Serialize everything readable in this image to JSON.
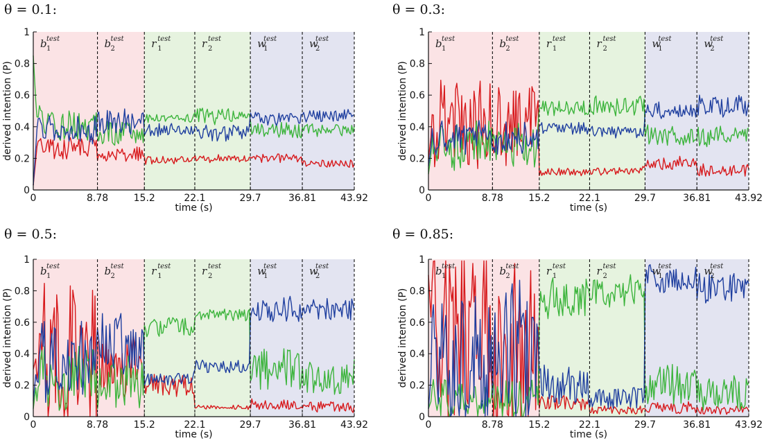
{
  "colors": {
    "red": "#d7191c",
    "green": "#3cb43c",
    "blue": "#1f3f9f",
    "bg_b": "#fbe3e5",
    "bg_r": "#e6f3df",
    "bg_w": "#e3e4f1"
  },
  "segment_labels": [
    {
      "base": "b",
      "sub": "1",
      "sup": "test"
    },
    {
      "base": "b",
      "sub": "2",
      "sup": "test"
    },
    {
      "base": "r",
      "sub": "1",
      "sup": "test"
    },
    {
      "base": "r",
      "sub": "2",
      "sup": "test"
    },
    {
      "base": "w",
      "sub": "1",
      "sup": "test"
    },
    {
      "base": "w",
      "sub": "2",
      "sup": "test"
    }
  ],
  "chart_data": [
    {
      "type": "line",
      "title": "θ = 0.1:",
      "xlabel": "time (s)",
      "ylabel": "derived intention (P)",
      "xlim": [
        0,
        43.92
      ],
      "ylim": [
        0,
        1
      ],
      "xticks": [
        0,
        8.78,
        15.2,
        22.1,
        29.7,
        36.81,
        43.92
      ],
      "xtick_labels": [
        "0",
        "8.78",
        "15.2",
        "22.1",
        "29.7",
        "36.81",
        "43.92"
      ],
      "yticks": [
        0,
        0.2,
        0.4,
        0.6,
        0.8,
        1
      ],
      "ytick_labels": [
        "0",
        "0.2",
        "0.4",
        "0.6",
        "0.8",
        "1"
      ],
      "segments": [
        0,
        8.78,
        15.2,
        22.1,
        29.7,
        36.81,
        43.92
      ],
      "series": [
        {
          "name": "red",
          "levels": [
            0.27,
            0.22,
            0.19,
            0.2,
            0.2,
            0.17
          ],
          "amp": [
            0.06,
            0.04,
            0.02,
            0.02,
            0.02,
            0.02
          ],
          "start": 0.03
        },
        {
          "name": "green",
          "levels": [
            0.42,
            0.35,
            0.45,
            0.47,
            0.38,
            0.38
          ],
          "amp": [
            0.08,
            0.07,
            0.02,
            0.04,
            0.04,
            0.03
          ],
          "start": 0.85
        },
        {
          "name": "blue",
          "levels": [
            0.38,
            0.43,
            0.38,
            0.36,
            0.45,
            0.47
          ],
          "amp": [
            0.07,
            0.07,
            0.03,
            0.04,
            0.03,
            0.03
          ],
          "start": 0.03
        }
      ]
    },
    {
      "type": "line",
      "title": "θ = 0.3:",
      "xlabel": "time (s)",
      "ylabel": "derived intention (P)",
      "xlim": [
        0,
        43.92
      ],
      "ylim": [
        0,
        1
      ],
      "xticks": [
        0,
        8.78,
        15.2,
        22.1,
        29.7,
        36.81,
        43.92
      ],
      "xtick_labels": [
        "0",
        "8.78",
        "15.2",
        "22.1",
        "29.7",
        "36.81",
        "43.92"
      ],
      "yticks": [
        0,
        0.2,
        0.4,
        0.6,
        0.8,
        1
      ],
      "ytick_labels": [
        "0",
        "0.2",
        "0.4",
        "0.6",
        "0.8",
        "1"
      ],
      "segments": [
        0,
        8.78,
        15.2,
        22.1,
        29.7,
        36.81,
        43.92
      ],
      "series": [
        {
          "name": "red",
          "levels": [
            0.4,
            0.42,
            0.11,
            0.12,
            0.17,
            0.13
          ],
          "amp": [
            0.22,
            0.2,
            0.02,
            0.02,
            0.03,
            0.03
          ],
          "start": 0.2
        },
        {
          "name": "green",
          "levels": [
            0.28,
            0.28,
            0.52,
            0.53,
            0.35,
            0.34
          ],
          "amp": [
            0.12,
            0.1,
            0.04,
            0.05,
            0.05,
            0.05
          ],
          "start": 0.1
        },
        {
          "name": "blue",
          "levels": [
            0.33,
            0.32,
            0.39,
            0.37,
            0.5,
            0.53
          ],
          "amp": [
            0.08,
            0.08,
            0.03,
            0.03,
            0.04,
            0.05
          ],
          "start": 0.15
        }
      ]
    },
    {
      "type": "line",
      "title": "θ = 0.5:",
      "xlabel": "time (s)",
      "ylabel": "derived intention (P)",
      "xlim": [
        0,
        43.92
      ],
      "ylim": [
        0,
        1
      ],
      "xticks": [
        0,
        8.78,
        15.2,
        22.1,
        29.7,
        36.81,
        43.92
      ],
      "xtick_labels": [
        "0",
        "8.78",
        "15.2",
        "22.1",
        "29.7",
        "36.81",
        "43.92"
      ],
      "yticks": [
        0,
        0.2,
        0.4,
        0.6,
        0.8,
        1
      ],
      "ytick_labels": [
        "0",
        "0.2",
        "0.4",
        "0.6",
        "0.8",
        "1"
      ],
      "segments": [
        0,
        8.78,
        15.2,
        22.1,
        29.7,
        36.81,
        43.92
      ],
      "series": [
        {
          "name": "red",
          "levels": [
            0.4,
            0.3,
            0.2,
            0.06,
            0.07,
            0.06
          ],
          "amp": [
            0.35,
            0.15,
            0.05,
            0.01,
            0.03,
            0.03
          ],
          "start": 0.3
        },
        {
          "name": "green",
          "levels": [
            0.25,
            0.22,
            0.57,
            0.65,
            0.3,
            0.25
          ],
          "amp": [
            0.15,
            0.12,
            0.05,
            0.03,
            0.1,
            0.08
          ],
          "start": 0.05
        },
        {
          "name": "blue",
          "levels": [
            0.35,
            0.45,
            0.24,
            0.32,
            0.68,
            0.68
          ],
          "amp": [
            0.2,
            0.15,
            0.03,
            0.03,
            0.06,
            0.05
          ],
          "start": 0.1
        }
      ]
    },
    {
      "type": "line",
      "title": "θ = 0.85:",
      "xlabel": "time (s)",
      "ylabel": "derived intention (P)",
      "xlim": [
        0,
        43.92
      ],
      "ylim": [
        0,
        1
      ],
      "xticks": [
        0,
        8.78,
        15.2,
        22.1,
        29.7,
        36.81,
        43.92
      ],
      "xtick_labels": [
        "0",
        "8.78",
        "15.2",
        "22.1",
        "29.7",
        "36.81",
        "43.92"
      ],
      "yticks": [
        0,
        0.2,
        0.4,
        0.6,
        0.8,
        1
      ],
      "ytick_labels": [
        "0",
        "0.2",
        "0.4",
        "0.6",
        "0.8",
        "1"
      ],
      "segments": [
        0,
        8.78,
        15.2,
        22.1,
        29.7,
        36.81,
        43.92
      ],
      "series": [
        {
          "name": "red",
          "levels": [
            0.5,
            0.45,
            0.08,
            0.04,
            0.06,
            0.04
          ],
          "amp": [
            0.45,
            0.4,
            0.04,
            0.02,
            0.03,
            0.02
          ],
          "start": 0.9
        },
        {
          "name": "green",
          "levels": [
            0.12,
            0.12,
            0.75,
            0.8,
            0.2,
            0.15
          ],
          "amp": [
            0.1,
            0.1,
            0.1,
            0.08,
            0.1,
            0.08
          ],
          "start": 0.05
        },
        {
          "name": "blue",
          "levels": [
            0.35,
            0.4,
            0.2,
            0.12,
            0.88,
            0.82
          ],
          "amp": [
            0.3,
            0.35,
            0.1,
            0.05,
            0.07,
            0.07
          ],
          "start": 0.05
        }
      ]
    }
  ]
}
